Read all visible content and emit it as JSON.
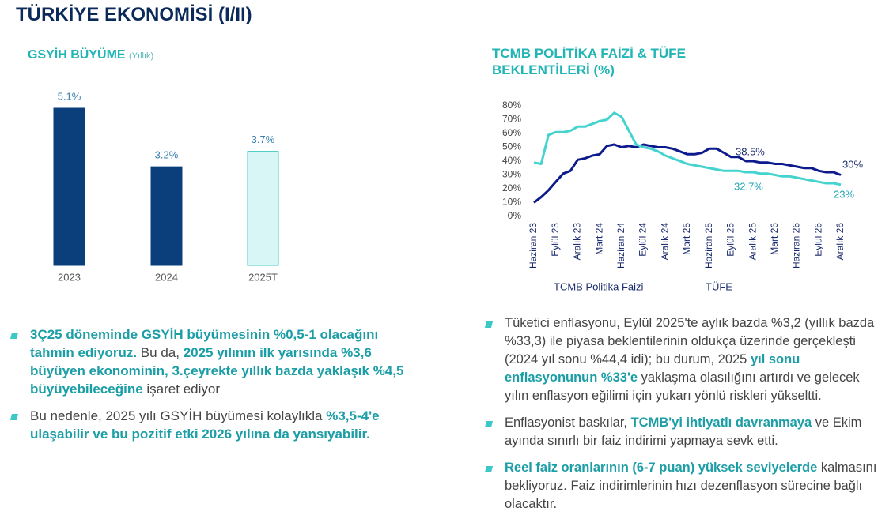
{
  "title": "TÜRKİYE EKONOMİSİ (I/II)",
  "chart_data": [
    {
      "type": "bar",
      "title": "GSYİH BÜYÜME",
      "subtitle": "(Yıllık)",
      "categories": [
        "2023",
        "2024",
        "2025T"
      ],
      "values": [
        5.1,
        3.2,
        3.7
      ],
      "value_labels": [
        "5.1%",
        "3.2%",
        "3.7%"
      ],
      "colors": [
        "#0b3f7c",
        "#0b3f7c",
        "#d8f6f6"
      ],
      "edgecolors": [
        "#0b3f7c",
        "#0b3f7c",
        "#3cc8c6"
      ]
    },
    {
      "type": "line",
      "title": "TCMB POLİTİKA FAİZİ & TÜFE BEKLENTİLERİ (%)",
      "categories": [
        "Haziran 23",
        null,
        null,
        "Eylül 23",
        null,
        null,
        "Aralık 23",
        null,
        null,
        "Mart 24",
        null,
        null,
        "Haziran 24",
        null,
        null,
        "Eylül 24",
        null,
        null,
        "Aralık 24",
        null,
        null,
        "Mart 25",
        null,
        null,
        "Haziran 25",
        null,
        null,
        "Eylül 25",
        null,
        null,
        "Aralık 25",
        null,
        null,
        "Mart 26",
        null,
        null,
        "Haziran 26",
        null,
        null,
        "Eylül 26",
        null,
        null,
        "Aralık 26"
      ],
      "series": [
        {
          "name": "TCMB Politika Faizi",
          "color": "#0c1a8e",
          "values": [
            10,
            14,
            19,
            25,
            31,
            33,
            41,
            42,
            44,
            45,
            51,
            52,
            50,
            51,
            50,
            52,
            51,
            50,
            50,
            49,
            47,
            45,
            45,
            46,
            49,
            49,
            46,
            43,
            43,
            40,
            40,
            39,
            39,
            38,
            38,
            37,
            36,
            35,
            35,
            33,
            32,
            32,
            30
          ]
        },
        {
          "name": "TÜFE",
          "color": "#44d3cf",
          "values": [
            39,
            38,
            59,
            61,
            61,
            62,
            65,
            65,
            67,
            69,
            70,
            75,
            72,
            62,
            52,
            50,
            49,
            47,
            44,
            42,
            40,
            38,
            37,
            36,
            35,
            34,
            33,
            33,
            33,
            32,
            32,
            31,
            31,
            30,
            29,
            29,
            28,
            27,
            26,
            25,
            24,
            24,
            23
          ]
        }
      ],
      "annotations": [
        "38.5%",
        "32.7%",
        "30%",
        "23%"
      ],
      "ylim": [
        0,
        80
      ],
      "yticks": [
        {
          "value": 0,
          "label": "0%"
        },
        {
          "value": 10,
          "label": "10%"
        },
        {
          "value": 20,
          "label": "20%"
        },
        {
          "value": 30,
          "label": "30%"
        },
        {
          "value": 40,
          "label": "40%"
        },
        {
          "value": 50,
          "label": "50%"
        },
        {
          "value": 60,
          "label": "60%"
        },
        {
          "value": 70,
          "label": "70%"
        },
        {
          "value": 80,
          "label": "80%"
        }
      ]
    }
  ],
  "left_bullets": [
    [
      {
        "text": "3Ç25 döneminde GSYİH büyümesinin %0,5-1 olacağını tahmin ediyoruz.",
        "emph": true
      },
      {
        "text": " Bu da, ",
        "emph": false
      },
      {
        "text": "2025 yılının ilk yarısında %3,6 büyüyen ekonominin, 3.çeyrekte yıllık bazda yaklaşık %4,5 büyüyebileceğine",
        "emph": true
      },
      {
        "text": " işaret ediyor",
        "emph": false
      }
    ],
    [
      {
        "text": " Bu nedenle, 2025 yılı GSYİH büyümesi kolaylıkla ",
        "emph": false
      },
      {
        "text": "%3,5-4'e ulaşabilir ve bu pozitif etki 2026 yılına da yansıyabilir.",
        "emph": true
      }
    ]
  ],
  "right_bullets": [
    [
      {
        "text": "Tüketici enflasyonu, Eylül 2025'te aylık bazda %3,2 (yıllık bazda %33,3) ile piyasa beklentilerinin oldukça üzerinde gerçekleşti (2024 yıl sonu %44,4 idi); bu durum, 2025 ",
        "emph": false
      },
      {
        "text": "yıl sonu enflasyonunun %33'e",
        "emph": true
      },
      {
        "text": " yaklaşma olasılığını artırdı ve gelecek yılın enflasyon eğilimi için yukarı yönlü riskleri yükseltti.",
        "emph": false
      }
    ],
    [
      {
        "text": "Enflasyonist baskılar, ",
        "emph": false
      },
      {
        "text": "TCMB'yi ihtiyatlı davranmaya",
        "emph": true
      },
      {
        "text": " ve Ekim ayında sınırlı bir faiz indirimi yapmaya sevk etti.",
        "emph": false
      }
    ],
    [
      {
        "text": "Reel faiz oranlarının (6-7 puan) yüksek seviyelerde",
        "emph": true
      },
      {
        "text": " kalmasını bekliyoruz. Faiz indirimlerinin hızı dezenflasyon sürecine bağlı olacaktır.",
        "emph": false
      }
    ]
  ]
}
